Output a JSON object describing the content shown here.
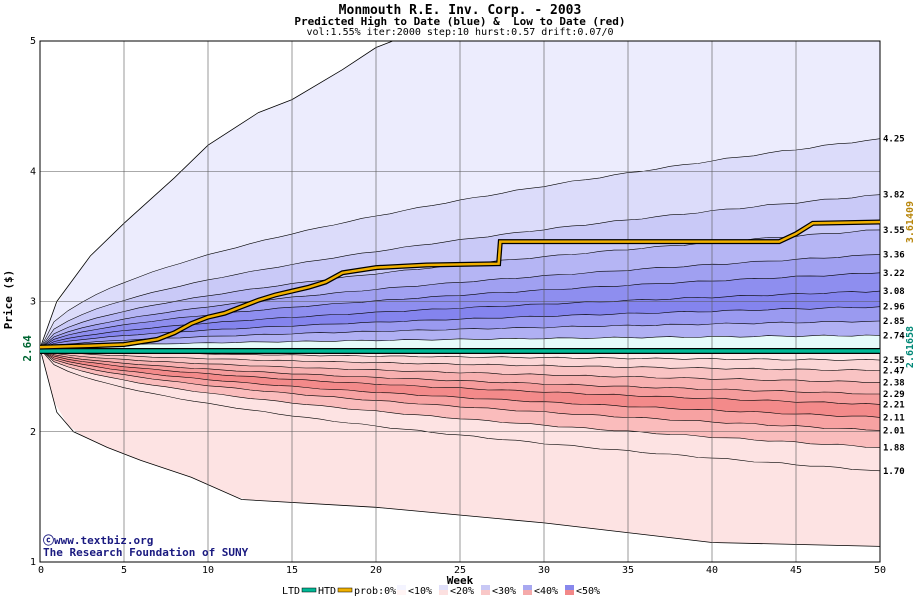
{
  "chart_data": {
    "type": "area",
    "title": "Monmouth R.E. Inv. Corp. - 2003",
    "subtitle": "Predicted High to Date (blue) &  Low to Date (red)",
    "params": "vol:1.55% iter:2000 step:10 hurst:0.57 drift:0.07/0",
    "xlabel": "Week",
    "ylabel": "Price ($)",
    "xlim": [
      0,
      50
    ],
    "ylim": [
      1,
      5
    ],
    "x_ticks": [
      0,
      5,
      10,
      15,
      20,
      25,
      30,
      35,
      40,
      45,
      50
    ],
    "y_ticks": [
      1,
      2,
      3,
      4,
      5
    ],
    "start_price": "2.64",
    "grid": true,
    "high_end_labels": [
      "4.25",
      "3.82",
      "3.55",
      "3.36",
      "3.22",
      "3.08",
      "2.96",
      "2.85",
      "2.74"
    ],
    "low_end_labels": [
      "2.55",
      "2.47",
      "2.38",
      "2.29",
      "2.21",
      "2.11",
      "2.01",
      "1.88",
      "1.70"
    ],
    "high_levels": [
      4.25,
      3.82,
      3.55,
      3.36,
      3.22,
      3.08,
      2.96,
      2.85,
      2.74
    ],
    "low_levels": [
      2.55,
      2.47,
      2.38,
      2.29,
      2.21,
      2.11,
      2.01,
      1.88,
      1.7
    ],
    "outer_high_points": [
      [
        0,
        2.64
      ],
      [
        1,
        3.0
      ],
      [
        3,
        3.35
      ],
      [
        5,
        3.6
      ],
      [
        8,
        3.95
      ],
      [
        10,
        4.2
      ],
      [
        13,
        4.45
      ],
      [
        15,
        4.55
      ],
      [
        18,
        4.78
      ],
      [
        20,
        4.95
      ],
      [
        21,
        5.0
      ]
    ],
    "outer_low_points": [
      [
        0,
        2.64
      ],
      [
        1,
        2.15
      ],
      [
        2,
        2.0
      ],
      [
        4,
        1.88
      ],
      [
        6,
        1.78
      ],
      [
        9,
        1.65
      ],
      [
        12,
        1.48
      ],
      [
        20,
        1.42
      ],
      [
        30,
        1.3
      ],
      [
        40,
        1.15
      ],
      [
        50,
        1.12
      ]
    ],
    "band_fills": [
      "#ececfd",
      "#dcdcfa",
      "#c9c9f7",
      "#b5b5f4",
      "#a0a0f1",
      "#8e8eef",
      "#8484ee",
      "#9a9af0",
      "#b0b0f3",
      "#e6fbfa",
      "#fce9e9",
      "#fbd6d6",
      "#f9c3c3",
      "#f7b0b0",
      "#f59c9c",
      "#f38a8a",
      "#f7a2a2",
      "#fabcbc",
      "#fde3e3"
    ],
    "series": [
      {
        "name": "HTD",
        "color": "#f0b000",
        "points": [
          [
            0,
            2.65
          ],
          [
            3,
            2.66
          ],
          [
            5,
            2.67
          ],
          [
            7,
            2.71
          ],
          [
            8,
            2.76
          ],
          [
            9,
            2.83
          ],
          [
            10,
            2.88
          ],
          [
            11,
            2.91
          ],
          [
            12,
            2.96
          ],
          [
            13,
            3.01
          ],
          [
            14,
            3.05
          ],
          [
            15,
            3.08
          ],
          [
            16,
            3.11
          ],
          [
            17,
            3.15
          ],
          [
            18,
            3.22
          ],
          [
            20,
            3.26
          ],
          [
            23,
            3.28
          ],
          [
            27.3,
            3.29
          ],
          [
            27.4,
            3.46
          ],
          [
            30,
            3.46
          ],
          [
            44,
            3.46
          ],
          [
            45,
            3.52
          ],
          [
            46,
            3.6
          ],
          [
            50,
            3.61
          ]
        ],
        "end_value": "3.61409"
      },
      {
        "name": "LTD",
        "color": "#00b896",
        "points": [
          [
            0,
            2.62
          ],
          [
            50,
            2.62
          ]
        ],
        "end_value": "2.61658"
      }
    ],
    "legend": {
      "position": "bottom",
      "items": [
        "LTD",
        "HTD",
        "prob:0%",
        "<10%",
        "<20%",
        "<30%",
        "<40%",
        "<50%"
      ],
      "colors": [
        "#00b896",
        "#f0b000",
        "#f4f4ff",
        "#e0e0fa",
        "#c8c8f5",
        "#a8a8f0",
        "#8888ec",
        "#6a6ae8"
      ],
      "low_colors": [
        "#fff4f4",
        "#fce0e0",
        "#f9c8c8",
        "#f5aaaa",
        "#f28888",
        "#ef6a6a"
      ]
    },
    "watermark": [
      "ⓒwww.textbiz.org",
      "The Research Foundation of SUNY"
    ]
  }
}
